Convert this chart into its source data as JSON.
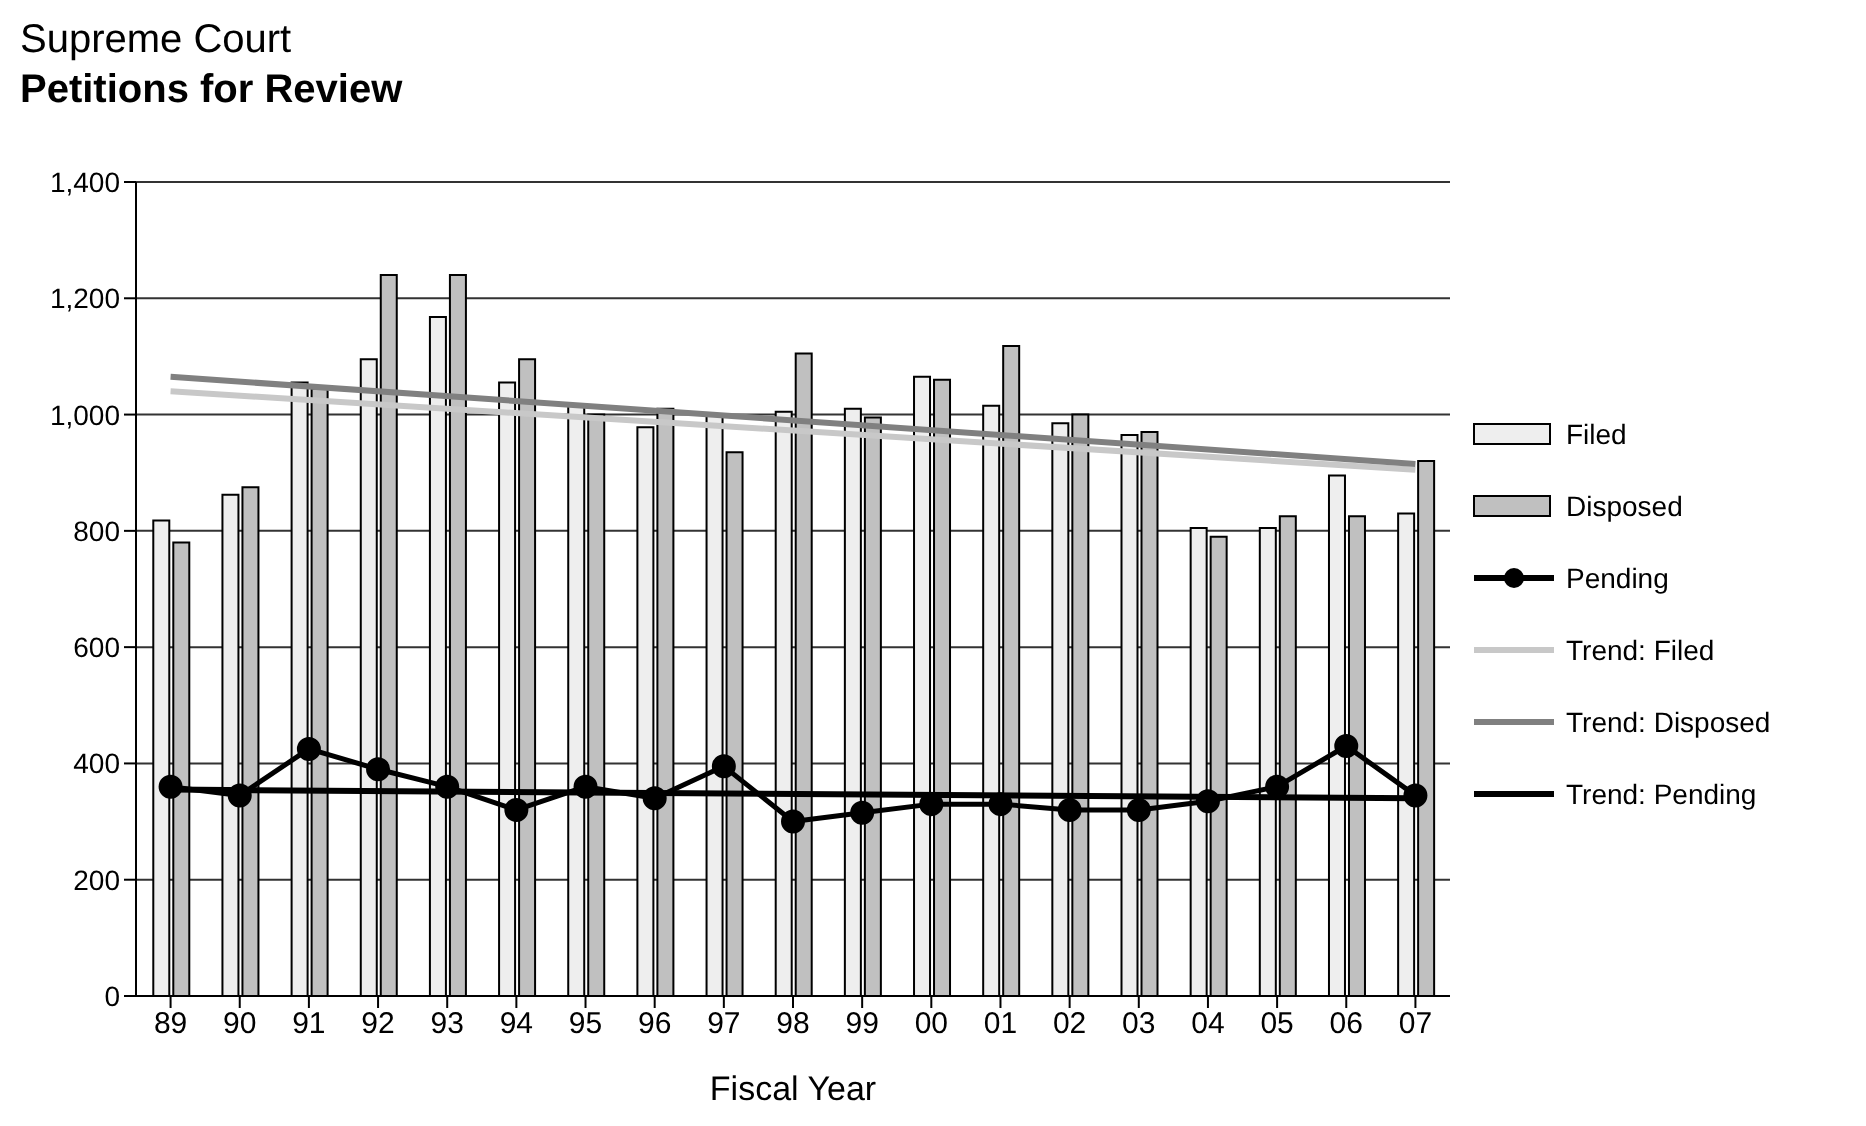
{
  "chart_data": {
    "type": "bar",
    "title": "Supreme Court",
    "subtitle": "Petitions for Review",
    "xlabel": "Fiscal Year",
    "categories": [
      "89",
      "90",
      "91",
      "92",
      "93",
      "94",
      "95",
      "96",
      "97",
      "98",
      "99",
      "00",
      "01",
      "02",
      "03",
      "04",
      "05",
      "06",
      "07"
    ],
    "series": [
      {
        "name": "Filed",
        "color": "#eeeeee",
        "values": [
          818,
          862,
          1055,
          1095,
          1168,
          1055,
          1015,
          978,
          1000,
          1005,
          1010,
          1065,
          1015,
          985,
          965,
          805,
          805,
          895,
          830
        ]
      },
      {
        "name": "Disposed",
        "color": "#c0c0c0",
        "values": [
          780,
          875,
          1045,
          1240,
          1240,
          1095,
          1000,
          1010,
          935,
          1105,
          995,
          1060,
          1118,
          1000,
          970,
          790,
          825,
          825,
          920
        ]
      },
      {
        "name": "Pending",
        "type": "line",
        "color": "#000000",
        "marker": "circle",
        "values": [
          360,
          345,
          425,
          390,
          360,
          320,
          360,
          340,
          395,
          300,
          315,
          330,
          330,
          320,
          320,
          335,
          360,
          430,
          345
        ]
      },
      {
        "name": "Trend: Filed",
        "type": "line",
        "color": "#c8c8c8",
        "marker": "none",
        "x": [
          "89",
          "07"
        ],
        "values": [
          1040,
          905
        ]
      },
      {
        "name": "Trend: Disposed",
        "type": "line",
        "color": "#808080",
        "marker": "none",
        "x": [
          "89",
          "07"
        ],
        "values": [
          1065,
          915
        ]
      },
      {
        "name": "Trend: Pending",
        "type": "line",
        "color": "#000000",
        "marker": "none",
        "x": [
          "89",
          "07"
        ],
        "values": [
          355,
          340
        ]
      }
    ],
    "ylim": [
      0,
      1400
    ],
    "yticks": [
      0,
      200,
      400,
      600,
      800,
      {
        "value": 1000,
        "label": "1,000"
      },
      {
        "value": 1200,
        "label": "1,200"
      },
      {
        "value": 1400,
        "label": "1,400"
      }
    ],
    "grid": "y",
    "legend": "right"
  }
}
